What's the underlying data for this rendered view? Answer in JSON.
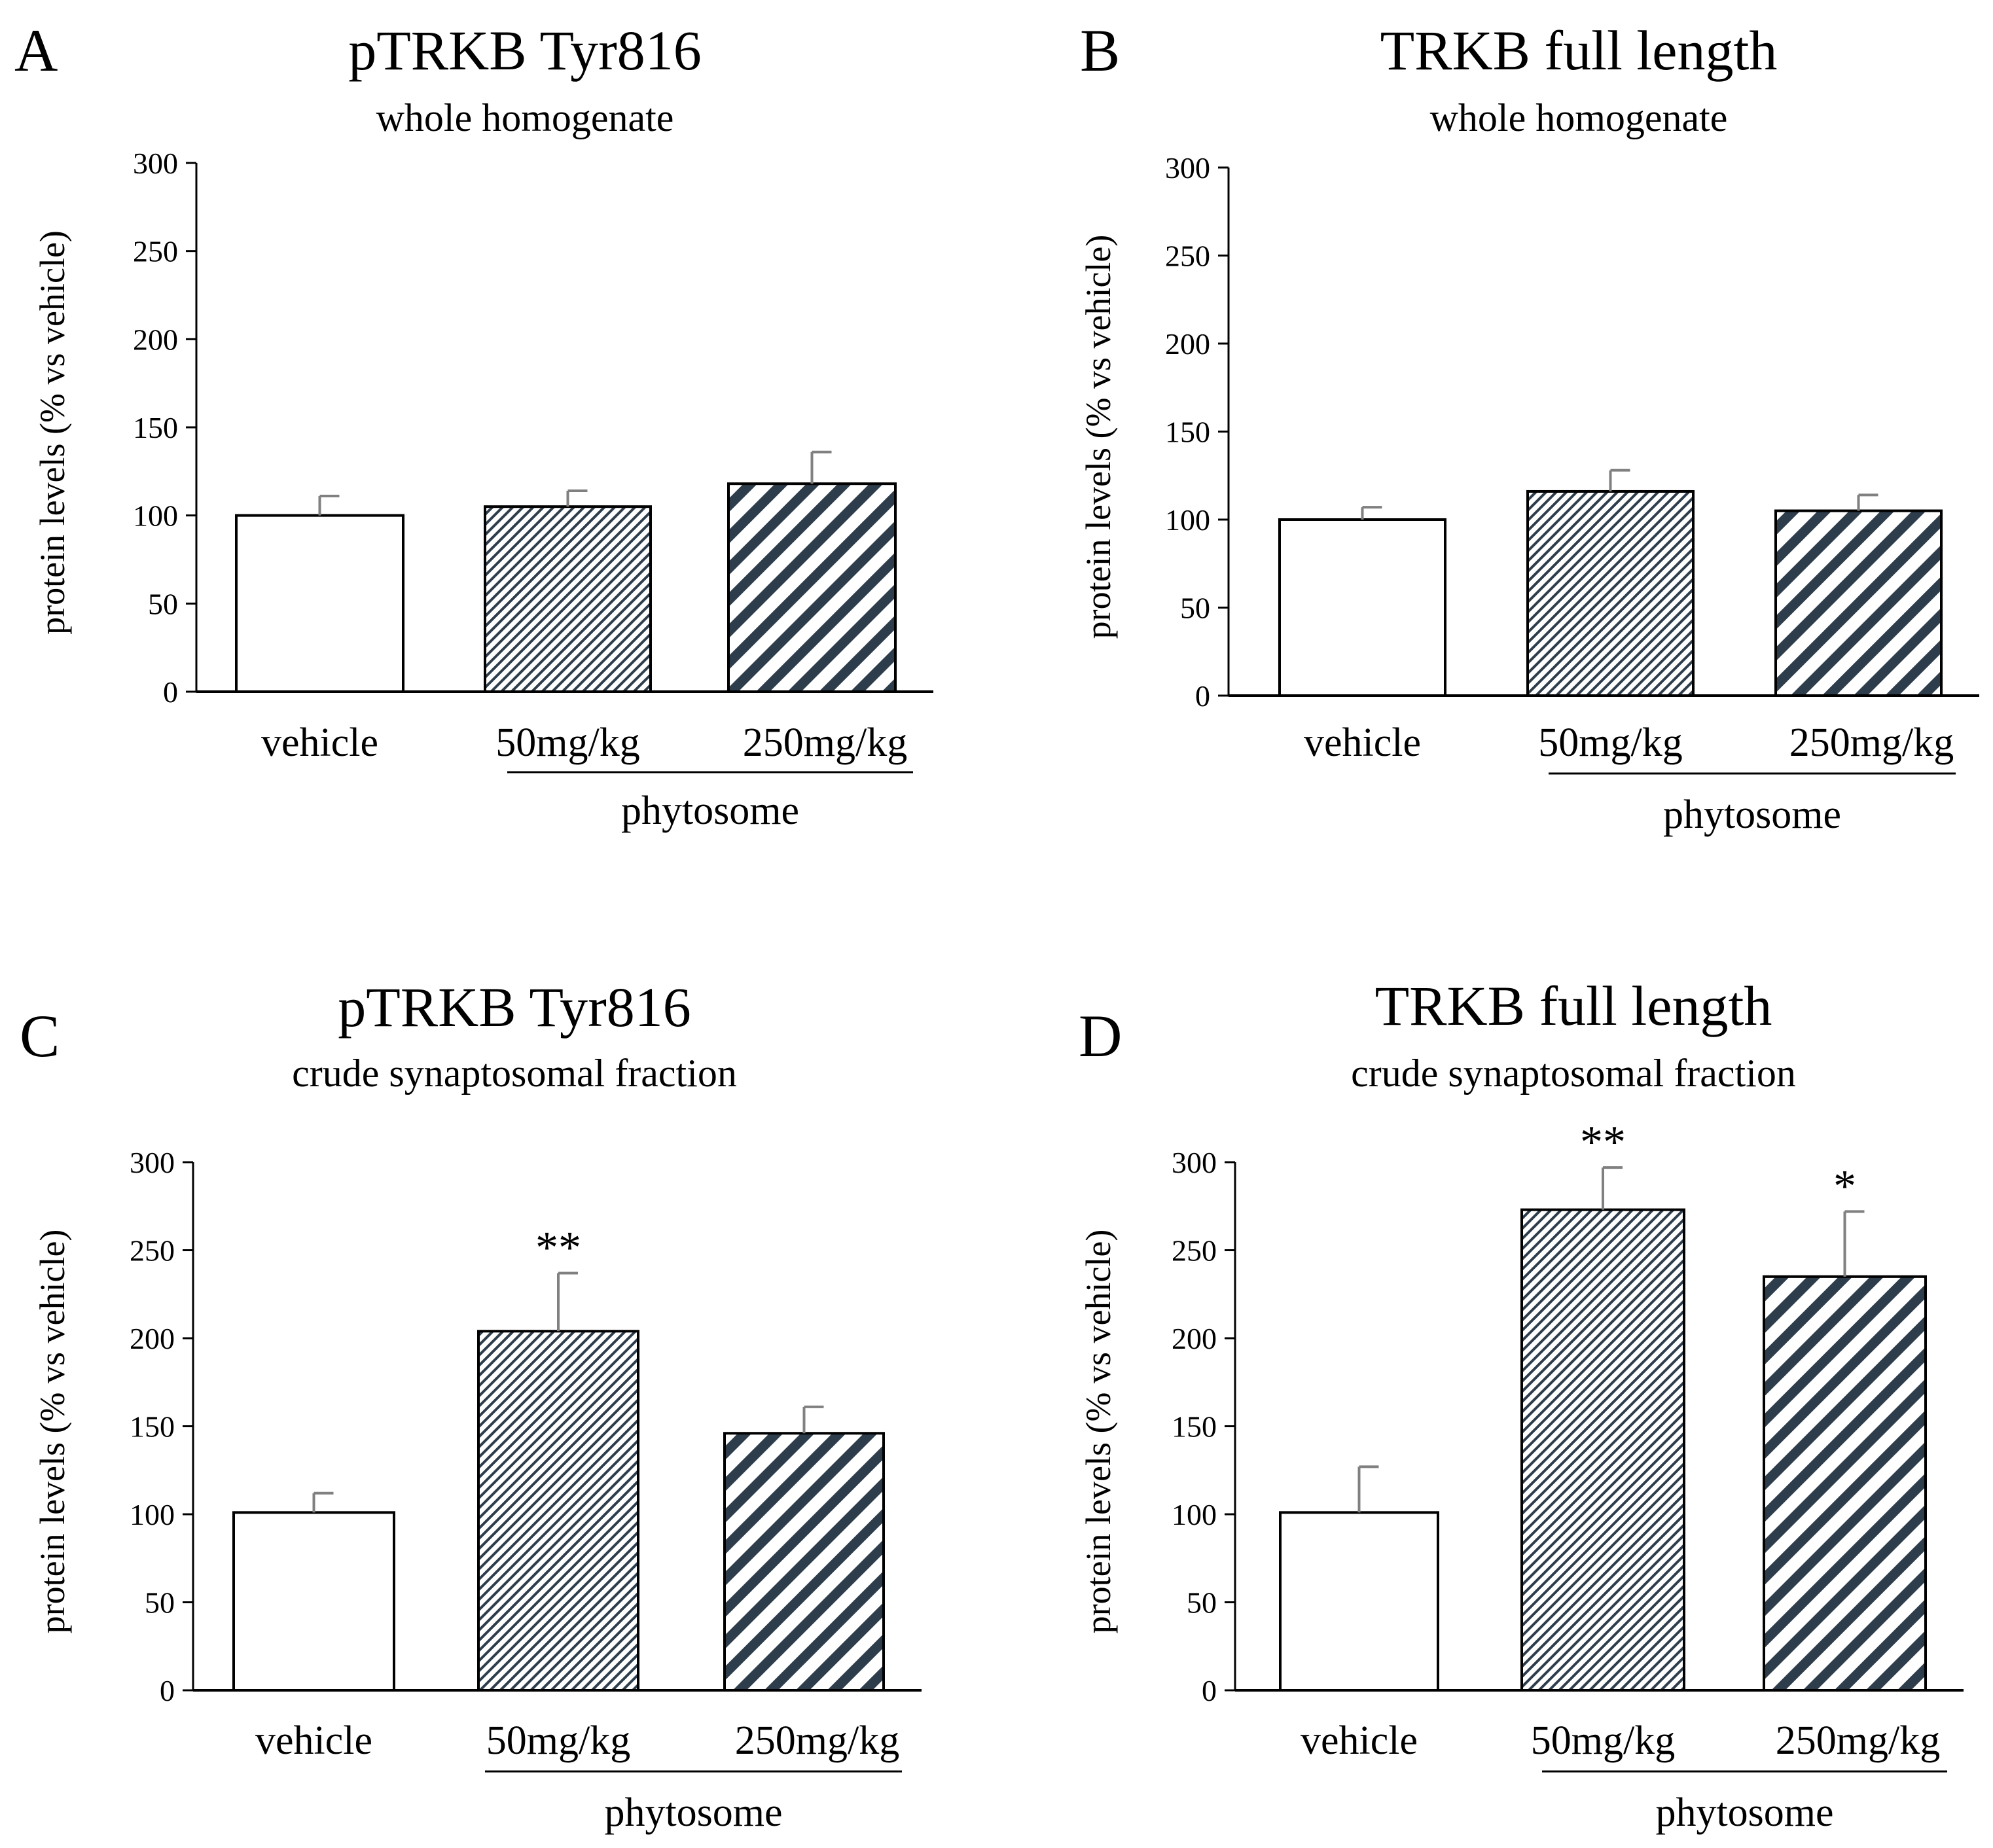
{
  "chart_data": [
    {
      "panel": "A",
      "type": "bar",
      "title": "pTRKB Tyr816",
      "subtitle": "whole homogenate",
      "ylabel": "protein levels (% vs vehicle)",
      "xlabel": "",
      "ylim": [
        0,
        300
      ],
      "yticks": [
        0,
        50,
        100,
        150,
        200,
        250,
        300
      ],
      "categories": [
        "vehicle",
        "50mg/kg",
        "250mg/kg"
      ],
      "group_label": "phytosome",
      "values": [
        100,
        105,
        118
      ],
      "errors": [
        11,
        9,
        18
      ],
      "significance": [
        "",
        "",
        ""
      ],
      "patterns": [
        "none",
        "fine-hatch",
        "wide-stripe"
      ]
    },
    {
      "panel": "B",
      "type": "bar",
      "title": "TRKB full length",
      "subtitle": "whole homogenate",
      "ylabel": "protein levels (% vs vehicle)",
      "xlabel": "",
      "ylim": [
        0,
        300
      ],
      "yticks": [
        0,
        50,
        100,
        150,
        200,
        250,
        300
      ],
      "categories": [
        "vehicle",
        "50mg/kg",
        "250mg/kg"
      ],
      "group_label": "phytosome",
      "values": [
        100,
        116,
        105
      ],
      "errors": [
        7,
        12,
        9
      ],
      "significance": [
        "",
        "",
        ""
      ],
      "patterns": [
        "none",
        "fine-hatch",
        "wide-stripe"
      ]
    },
    {
      "panel": "C",
      "type": "bar",
      "title": "pTRKB Tyr816",
      "subtitle": "crude synaptosomal fraction",
      "ylabel": "protein levels (% vs vehicle)",
      "xlabel": "",
      "ylim": [
        0,
        300
      ],
      "yticks": [
        0,
        50,
        100,
        150,
        200,
        250,
        300
      ],
      "categories": [
        "vehicle",
        "50mg/kg",
        "250mg/kg"
      ],
      "group_label": "phytosome",
      "values": [
        101,
        204,
        146
      ],
      "errors": [
        11,
        33,
        15
      ],
      "significance": [
        "",
        "**",
        ""
      ],
      "patterns": [
        "none",
        "fine-hatch",
        "wide-stripe"
      ]
    },
    {
      "panel": "D",
      "type": "bar",
      "title": "TRKB full length",
      "subtitle": "crude synaptosomal fraction",
      "ylabel": "protein levels (% vs vehicle)",
      "xlabel": "",
      "ylim": [
        0,
        300
      ],
      "yticks": [
        0,
        50,
        100,
        150,
        200,
        250,
        300
      ],
      "categories": [
        "vehicle",
        "50mg/kg",
        "250mg/kg"
      ],
      "group_label": "phytosome",
      "values": [
        101,
        273,
        235
      ],
      "errors": [
        26,
        24,
        37
      ],
      "significance": [
        "",
        "**",
        "*"
      ],
      "patterns": [
        "none",
        "fine-hatch",
        "wide-stripe"
      ]
    }
  ],
  "colors": {
    "axis": "#000000",
    "bar_outline": "#000000",
    "bar_fill": "#ffffff",
    "hatch": "#2e3d4c",
    "error_bar": "#808080"
  }
}
